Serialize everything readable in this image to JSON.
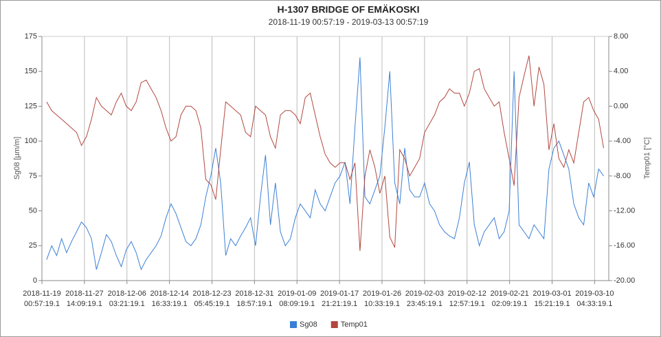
{
  "chart_data": {
    "type": "line",
    "title": "H-1307 BRIDGE OF EMÄKOSKI",
    "subtitle": "2018-11-19 00:57:19 - 2019-03-13 00:57:19",
    "y_label": "Sg08 [µm/m]",
    "y2_label": "Temp01 [°C]",
    "xlim": [
      "2018-11-19 00:57:19",
      "2019-03-13 00:57:19"
    ],
    "xticks": [
      {
        "value": "2018-11-19 00:57:19",
        "label": [
          "2018-11-19",
          "00:57:19.1"
        ]
      },
      {
        "value": "2018-11-27 14:09:19",
        "label": [
          "2018-11-27",
          "14:09:19.1"
        ]
      },
      {
        "value": "2018-12-06 03:21:19",
        "label": [
          "2018-12-06",
          "03:21:19.1"
        ]
      },
      {
        "value": "2018-12-14 16:33:19",
        "label": [
          "2018-12-14",
          "16:33:19.1"
        ]
      },
      {
        "value": "2018-12-23 05:45:19",
        "label": [
          "2018-12-23",
          "05:45:19.1"
        ]
      },
      {
        "value": "2018-12-31 18:57:19",
        "label": [
          "2018-12-31",
          "18:57:19.1"
        ]
      },
      {
        "value": "2019-01-09 08:09:19",
        "label": [
          "2019-01-09",
          "08:09:19.1"
        ]
      },
      {
        "value": "2019-01-17 21:21:19",
        "label": [
          "2019-01-17",
          "21:21:19.1"
        ]
      },
      {
        "value": "2019-01-26 10:33:19",
        "label": [
          "2019-01-26",
          "10:33:19.1"
        ]
      },
      {
        "value": "2019-02-03 23:45:19",
        "label": [
          "2019-02-03",
          "23:45:19.1"
        ]
      },
      {
        "value": "2019-02-12 12:57:19",
        "label": [
          "2019-02-12",
          "12:57:19.1"
        ]
      },
      {
        "value": "2019-02-21 02:09:19",
        "label": [
          "2019-02-21",
          "02:09:19.1"
        ]
      },
      {
        "value": "2019-03-01 15:21:19",
        "label": [
          "2019-03-01",
          "15:21:19.1"
        ]
      },
      {
        "value": "2019-03-10 04:33:19",
        "label": [
          "2019-03-10",
          "04:33:19.1"
        ]
      }
    ],
    "ylim": [
      0,
      175
    ],
    "yticks": [
      0,
      25,
      50,
      75,
      100,
      125,
      150,
      175
    ],
    "y2lim": [
      -20,
      8
    ],
    "y2ticks": [
      {
        "value": -20,
        "label": "-20.00"
      },
      {
        "value": -16,
        "label": "-16.00"
      },
      {
        "value": -12,
        "label": "-12.00"
      },
      {
        "value": -8,
        "label": "-8.00"
      },
      {
        "value": -4,
        "label": "-4.00"
      },
      {
        "value": 0,
        "label": "0.00"
      },
      {
        "value": 4,
        "label": "4.00"
      },
      {
        "value": 8,
        "label": "8.00"
      }
    ],
    "grid": "x",
    "legend": "bottom",
    "x": [
      "2018-11-20",
      "2018-11-21",
      "2018-11-22",
      "2018-11-23",
      "2018-11-24",
      "2018-11-25",
      "2018-11-26",
      "2018-11-27",
      "2018-11-28",
      "2018-11-29",
      "2018-11-30",
      "2018-12-01",
      "2018-12-02",
      "2018-12-03",
      "2018-12-04",
      "2018-12-05",
      "2018-12-06",
      "2018-12-07",
      "2018-12-08",
      "2018-12-09",
      "2018-12-10",
      "2018-12-11",
      "2018-12-12",
      "2018-12-13",
      "2018-12-14",
      "2018-12-15",
      "2018-12-16",
      "2018-12-17",
      "2018-12-18",
      "2018-12-19",
      "2018-12-20",
      "2018-12-21",
      "2018-12-22",
      "2018-12-23",
      "2018-12-24",
      "2018-12-25",
      "2018-12-26",
      "2018-12-27",
      "2018-12-28",
      "2018-12-29",
      "2018-12-30",
      "2018-12-31",
      "2019-01-01",
      "2019-01-02",
      "2019-01-03",
      "2019-01-04",
      "2019-01-05",
      "2019-01-06",
      "2019-01-07",
      "2019-01-08",
      "2019-01-09",
      "2019-01-10",
      "2019-01-11",
      "2019-01-12",
      "2019-01-13",
      "2019-01-14",
      "2019-01-15",
      "2019-01-16",
      "2019-01-17",
      "2019-01-18",
      "2019-01-19",
      "2019-01-20",
      "2019-01-21",
      "2019-01-22",
      "2019-01-23",
      "2019-01-24",
      "2019-01-25",
      "2019-01-26",
      "2019-01-27",
      "2019-01-28",
      "2019-01-29",
      "2019-01-30",
      "2019-01-31",
      "2019-02-01",
      "2019-02-02",
      "2019-02-03",
      "2019-02-04",
      "2019-02-05",
      "2019-02-06",
      "2019-02-07",
      "2019-02-08",
      "2019-02-09",
      "2019-02-10",
      "2019-02-11",
      "2019-02-12",
      "2019-02-13",
      "2019-02-14",
      "2019-02-15",
      "2019-02-16",
      "2019-02-17",
      "2019-02-18",
      "2019-02-19",
      "2019-02-20",
      "2019-02-21",
      "2019-02-22",
      "2019-02-23",
      "2019-02-24",
      "2019-02-25",
      "2019-02-26",
      "2019-02-27",
      "2019-02-28",
      "2019-03-01",
      "2019-03-02",
      "2019-03-03",
      "2019-03-04",
      "2019-03-05",
      "2019-03-06",
      "2019-03-07",
      "2019-03-08",
      "2019-03-09",
      "2019-03-10",
      "2019-03-11",
      "2019-03-12"
    ],
    "series": [
      {
        "name": "Sg08",
        "color": "#3a7fd5",
        "values": [
          15,
          25,
          18,
          30,
          20,
          28,
          35,
          42,
          38,
          30,
          8,
          20,
          33,
          28,
          18,
          10,
          22,
          28,
          20,
          8,
          15,
          20,
          25,
          32,
          45,
          55,
          48,
          38,
          28,
          25,
          30,
          40,
          60,
          75,
          95,
          70,
          18,
          30,
          25,
          32,
          38,
          45,
          25,
          60,
          90,
          40,
          70,
          35,
          25,
          30,
          45,
          55,
          50,
          45,
          65,
          55,
          50,
          60,
          70,
          75,
          85,
          55,
          110,
          160,
          60,
          55,
          65,
          75,
          110,
          150,
          70,
          55,
          95,
          65,
          60,
          60,
          70,
          55,
          50,
          40,
          35,
          32,
          30,
          45,
          70,
          85,
          40,
          25,
          35,
          40,
          45,
          30,
          35,
          50,
          150,
          40,
          35,
          30,
          40,
          35,
          30,
          80,
          95,
          100,
          90,
          80,
          55,
          45,
          40,
          70,
          60,
          80,
          75
        ]
      },
      {
        "name": "Temp01",
        "color": "#b2463e",
        "axis": "y2",
        "values": [
          0.5,
          -0.5,
          -1,
          -1.5,
          -2,
          -2.5,
          -3,
          -4.5,
          -3.5,
          -1.5,
          1,
          0,
          -0.5,
          -1,
          0.5,
          1.5,
          0,
          -0.5,
          0.5,
          2.7,
          3,
          2,
          1,
          -0.5,
          -2.5,
          -4,
          -3.5,
          -1,
          0,
          0,
          -0.5,
          -2.5,
          -8.4,
          -9,
          -10.7,
          -5,
          0.5,
          0,
          -0.5,
          -1,
          -3,
          -3.5,
          0,
          -0.5,
          -1,
          -3.5,
          -4.8,
          -1,
          -0.5,
          -0.5,
          -1,
          -2,
          1,
          1.5,
          -1,
          -3.5,
          -5.5,
          -6.5,
          -7,
          -6.5,
          -6.5,
          -8.4,
          -6.5,
          -16.6,
          -8,
          -5,
          -7,
          -10,
          -8,
          -15,
          -16.2,
          -5,
          -6,
          -8,
          -7,
          -6,
          -3,
          -2,
          -1,
          0.5,
          1,
          2,
          1.5,
          1.5,
          0,
          1.5,
          4,
          4.3,
          2,
          1,
          0,
          0.5,
          -3,
          -6,
          -9.1,
          1,
          3.5,
          5.8,
          0,
          4.5,
          2.5,
          -5,
          -2,
          -6,
          -7,
          -5,
          -6.5,
          -3,
          0.5,
          1,
          -0.5,
          -1.5,
          -4.8
        ]
      }
    ]
  }
}
